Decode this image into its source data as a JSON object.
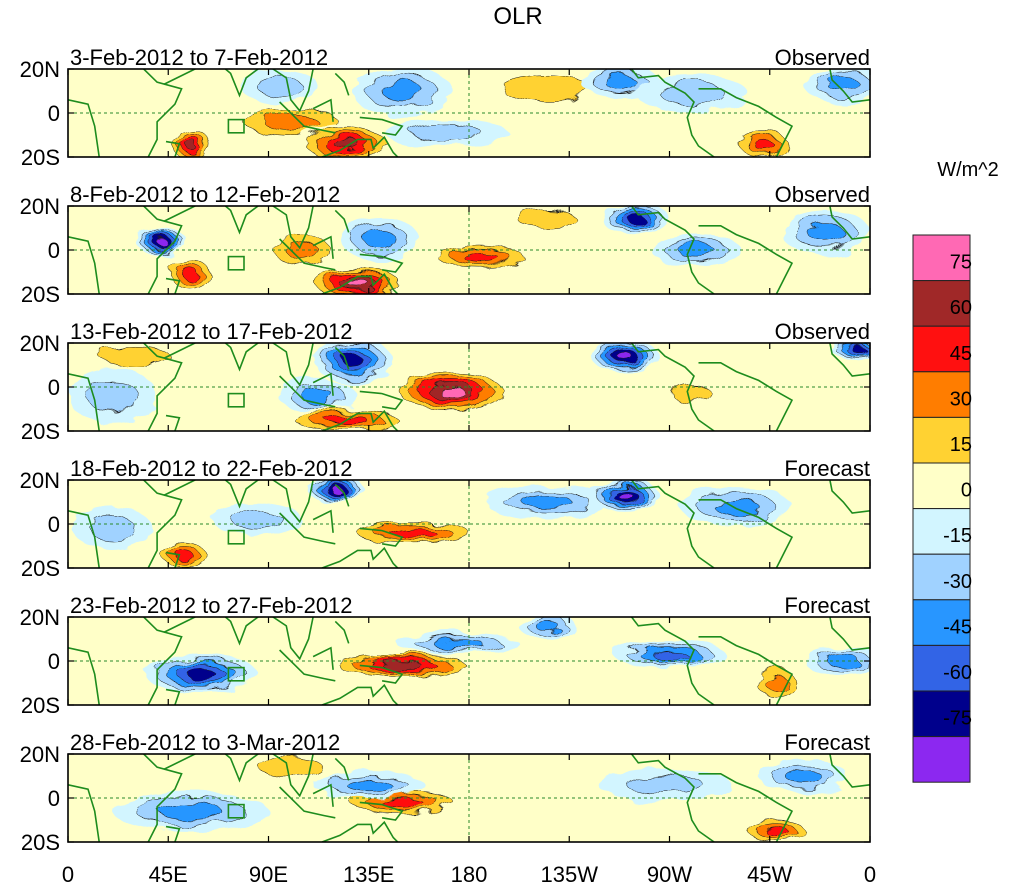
{
  "chart_data": {
    "type": "heatmap",
    "title": "OLR",
    "units_label": "W/m^2",
    "y_tick_labels": [
      "20N",
      "0",
      "20S"
    ],
    "x_tick_labels": [
      "0",
      "45E",
      "90E",
      "135E",
      "180",
      "135W",
      "90W",
      "45W",
      "0"
    ],
    "x_range_deg_east": [
      0,
      360
    ],
    "y_range_deg": [
      -20,
      20
    ],
    "color_scale": {
      "boundaries": [
        -75,
        -60,
        -45,
        -30,
        -15,
        0,
        15,
        30,
        45,
        60,
        75
      ],
      "tick_labels": [
        "75",
        "60",
        "45",
        "30",
        "15",
        "0",
        "-15",
        "-30",
        "-45",
        "-60",
        "-75"
      ],
      "colors_top_to_bottom": [
        "#ff69b4",
        "#a02828",
        "#ff1010",
        "#ff7d00",
        "#ffd232",
        "#ffffc8",
        "#d2f5ff",
        "#a0d2ff",
        "#2896ff",
        "#3264e6",
        "#00008c",
        "#8c28f0"
      ]
    },
    "panels": [
      {
        "period": "3-Feb-2012 to 7-Feb-2012",
        "type": "Observed",
        "anomalies": [
          {
            "lon": 55,
            "lat": -14,
            "value": 62,
            "rx": 8,
            "ry": 7
          },
          {
            "lon": 100,
            "lat": -4,
            "value": 40,
            "rx": 24,
            "ry": 7
          },
          {
            "lon": 125,
            "lat": -14,
            "value": 66,
            "rx": 18,
            "ry": 7
          },
          {
            "lon": 95,
            "lat": 12,
            "value": -25,
            "rx": 14,
            "ry": 6
          },
          {
            "lon": 150,
            "lat": 10,
            "value": -35,
            "rx": 18,
            "ry": 9
          },
          {
            "lon": 170,
            "lat": -9,
            "value": -28,
            "rx": 22,
            "ry": 5
          },
          {
            "lon": 215,
            "lat": 11,
            "value": 22,
            "rx": 28,
            "ry": 8
          },
          {
            "lon": 248,
            "lat": 14,
            "value": -38,
            "rx": 14,
            "ry": 6
          },
          {
            "lon": 280,
            "lat": 9,
            "value": -30,
            "rx": 20,
            "ry": 7
          },
          {
            "lon": 312,
            "lat": -14,
            "value": 58,
            "rx": 11,
            "ry": 6
          },
          {
            "lon": 348,
            "lat": 13,
            "value": -40,
            "rx": 14,
            "ry": 7
          }
        ]
      },
      {
        "period": "8-Feb-2012 to 12-Feb-2012",
        "type": "Observed",
        "anomalies": [
          {
            "lon": 42,
            "lat": 4,
            "value": -78,
            "rx": 9,
            "ry": 5
          },
          {
            "lon": 55,
            "lat": -11,
            "value": 50,
            "rx": 9,
            "ry": 7
          },
          {
            "lon": 105,
            "lat": 0,
            "value": 40,
            "rx": 14,
            "ry": 8
          },
          {
            "lon": 130,
            "lat": -15,
            "value": 78,
            "rx": 18,
            "ry": 6
          },
          {
            "lon": 140,
            "lat": 5,
            "value": -35,
            "rx": 14,
            "ry": 8
          },
          {
            "lon": 185,
            "lat": -3,
            "value": 48,
            "rx": 20,
            "ry": 5
          },
          {
            "lon": 215,
            "lat": 14,
            "value": 24,
            "rx": 18,
            "ry": 6
          },
          {
            "lon": 255,
            "lat": 14,
            "value": -62,
            "rx": 12,
            "ry": 6
          },
          {
            "lon": 282,
            "lat": 0,
            "value": -32,
            "rx": 16,
            "ry": 6
          },
          {
            "lon": 340,
            "lat": 8,
            "value": -45,
            "rx": 16,
            "ry": 8
          }
        ]
      },
      {
        "period": "13-Feb-2012 to 17-Feb-2012",
        "type": "Observed",
        "anomalies": [
          {
            "lon": 30,
            "lat": 14,
            "value": 20,
            "rx": 22,
            "ry": 6
          },
          {
            "lon": 20,
            "lat": -4,
            "value": -30,
            "rx": 16,
            "ry": 10
          },
          {
            "lon": 128,
            "lat": 12,
            "value": -65,
            "rx": 14,
            "ry": 8
          },
          {
            "lon": 112,
            "lat": -4,
            "value": -32,
            "rx": 14,
            "ry": 6
          },
          {
            "lon": 125,
            "lat": -15,
            "value": 52,
            "rx": 24,
            "ry": 5
          },
          {
            "lon": 172,
            "lat": -2,
            "value": 80,
            "rx": 22,
            "ry": 8
          },
          {
            "lon": 250,
            "lat": 14,
            "value": -78,
            "rx": 12,
            "ry": 6
          },
          {
            "lon": 280,
            "lat": -3,
            "value": 28,
            "rx": 12,
            "ry": 6
          },
          {
            "lon": 355,
            "lat": 17,
            "value": -72,
            "rx": 10,
            "ry": 4
          }
        ]
      },
      {
        "period": "18-Feb-2012 to 22-Feb-2012",
        "type": "Forecast",
        "anomalies": [
          {
            "lon": 120,
            "lat": 16,
            "value": -80,
            "rx": 10,
            "ry": 5
          },
          {
            "lon": 155,
            "lat": -4,
            "value": 56,
            "rx": 26,
            "ry": 5
          },
          {
            "lon": 52,
            "lat": -14,
            "value": 46,
            "rx": 10,
            "ry": 6
          },
          {
            "lon": 215,
            "lat": 10,
            "value": -40,
            "rx": 22,
            "ry": 6
          },
          {
            "lon": 250,
            "lat": 13,
            "value": -78,
            "rx": 12,
            "ry": 6
          },
          {
            "lon": 20,
            "lat": -2,
            "value": -30,
            "rx": 14,
            "ry": 8
          },
          {
            "lon": 300,
            "lat": 8,
            "value": -34,
            "rx": 20,
            "ry": 7
          },
          {
            "lon": 85,
            "lat": 2,
            "value": -25,
            "rx": 16,
            "ry": 6
          }
        ]
      },
      {
        "period": "23-Feb-2012 to 27-Feb-2012",
        "type": "Forecast",
        "anomalies": [
          {
            "lon": 60,
            "lat": -6,
            "value": -62,
            "rx": 20,
            "ry": 7
          },
          {
            "lon": 150,
            "lat": -2,
            "value": 64,
            "rx": 28,
            "ry": 5
          },
          {
            "lon": 175,
            "lat": 8,
            "value": -32,
            "rx": 22,
            "ry": 4
          },
          {
            "lon": 215,
            "lat": 16,
            "value": -34,
            "rx": 10,
            "ry": 5
          },
          {
            "lon": 270,
            "lat": 3,
            "value": -50,
            "rx": 20,
            "ry": 5
          },
          {
            "lon": 318,
            "lat": -10,
            "value": 34,
            "rx": 10,
            "ry": 7
          },
          {
            "lon": 348,
            "lat": 0,
            "value": -38,
            "rx": 14,
            "ry": 5
          }
        ]
      },
      {
        "period": "28-Feb-2012 to 3-Mar-2012",
        "type": "Forecast",
        "anomalies": [
          {
            "lon": 55,
            "lat": -6,
            "value": -45,
            "rx": 28,
            "ry": 7
          },
          {
            "lon": 150,
            "lat": -2,
            "value": 50,
            "rx": 24,
            "ry": 5
          },
          {
            "lon": 135,
            "lat": 6,
            "value": -34,
            "rx": 20,
            "ry": 5
          },
          {
            "lon": 268,
            "lat": 6,
            "value": -28,
            "rx": 24,
            "ry": 6
          },
          {
            "lon": 318,
            "lat": -15,
            "value": 46,
            "rx": 13,
            "ry": 5
          },
          {
            "lon": 330,
            "lat": 10,
            "value": -36,
            "rx": 16,
            "ry": 6
          },
          {
            "lon": 100,
            "lat": 14,
            "value": 24,
            "rx": 20,
            "ry": 6
          }
        ]
      }
    ]
  }
}
